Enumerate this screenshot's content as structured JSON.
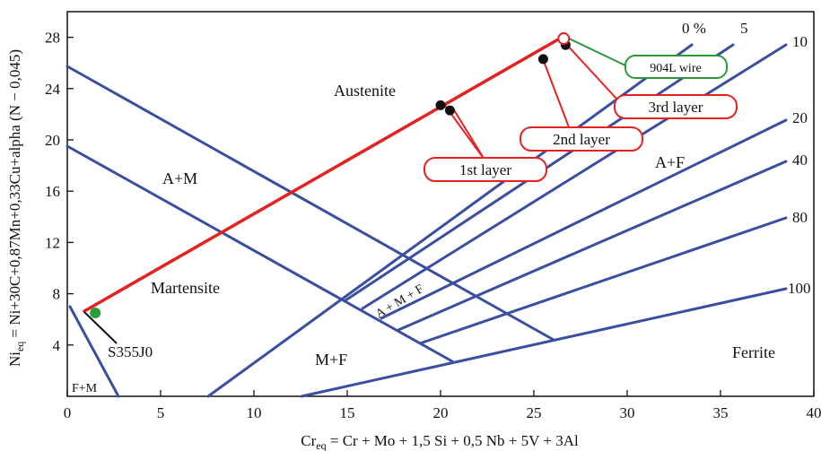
{
  "axes": {
    "x_title_main": "Cr",
    "x_title_sub": "eq",
    "x_title_rest": " = Cr + Mo + 1,5 Si + 0,5 Nb + 5V + 3Al",
    "y_title_main": "Ni",
    "y_title_sub": "eq",
    "y_title_rest": " = Ni+30C+0,87Mn+0,33Cu+alpha (N − 0,045)",
    "x_ticks": [
      "0",
      "5",
      "10",
      "15",
      "20",
      "25",
      "30",
      "35",
      "40"
    ],
    "y_ticks": [
      "4",
      "8",
      "12",
      "16",
      "20",
      "24",
      "28"
    ]
  },
  "regions": {
    "austenite": "Austenite",
    "am": "A+M",
    "martensite": "Martensite",
    "amf": "A + M + F",
    "af": "A+F",
    "mf": "M+F",
    "ferrite": "Ferrite",
    "fm": "F+M"
  },
  "ferrite_pct": {
    "p0": "0 %",
    "p5": "5",
    "p10": "10",
    "p20": "20",
    "p40": "40",
    "p80": "80",
    "p100": "100"
  },
  "callouts": {
    "wire": "904L wire",
    "layer3": "3rd layer",
    "layer2": "2nd layer",
    "layer1": "1st layer",
    "base": "S355J0"
  },
  "colors": {
    "lines": "#3a4fa0",
    "dilution": "#e32222",
    "wire_box": "#2a9a3a",
    "base_point": "#2a9a3a",
    "points": "#111111"
  },
  "chart_data": {
    "type": "scatter",
    "xlim": [
      0,
      40
    ],
    "ylim": [
      0,
      30
    ],
    "points": [
      {
        "label": "S355J0",
        "x": 1.5,
        "y": 6.5
      },
      {
        "label": "1st layer",
        "x": 20.0,
        "y": 22.7
      },
      {
        "label": "1st layer",
        "x": 20.5,
        "y": 22.3
      },
      {
        "label": "2nd layer",
        "x": 25.5,
        "y": 26.3
      },
      {
        "label": "3rd layer",
        "x": 26.7,
        "y": 27.4
      },
      {
        "label": "904L wire",
        "x": 26.6,
        "y": 27.9
      }
    ]
  }
}
